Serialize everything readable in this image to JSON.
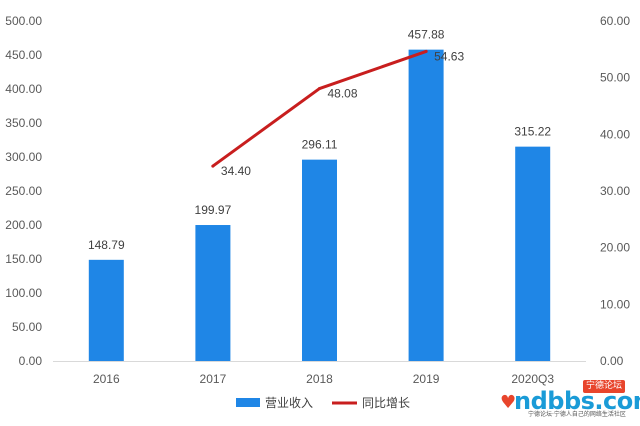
{
  "chart_data": {
    "type": "bar",
    "title": "",
    "categories": [
      "2016",
      "2017",
      "2018",
      "2019",
      "2020Q3"
    ],
    "series": [
      {
        "name": "营业收入",
        "type": "bar",
        "axis": "left",
        "values": [
          148.79,
          199.97,
          296.11,
          457.88,
          315.22
        ],
        "labels": [
          "148.79",
          "199.97",
          "296.11",
          "457.88",
          "315.22"
        ],
        "color": "#1f86e6"
      },
      {
        "name": "同比增长",
        "type": "line",
        "axis": "right",
        "values": [
          null,
          34.4,
          48.08,
          54.63,
          null
        ],
        "labels": [
          "",
          "34.40",
          "48.08",
          "54.63",
          ""
        ],
        "color": "#c81e1e"
      }
    ],
    "y_left": {
      "min": 0,
      "max": 500,
      "step": 50,
      "ticks": [
        "0.00",
        "50.00",
        "100.00",
        "150.00",
        "200.00",
        "250.00",
        "300.00",
        "350.00",
        "400.00",
        "450.00",
        "500.00"
      ]
    },
    "y_right": {
      "min": 0,
      "max": 60,
      "step": 10,
      "ticks": [
        "0.00",
        "10.00",
        "20.00",
        "30.00",
        "40.00",
        "50.00",
        "60.00"
      ]
    },
    "grid": false,
    "legend": "bottom"
  },
  "watermark": {
    "badge": "宁德论坛",
    "logo": "ndbbs.com",
    "heart": "♥",
    "sub": "宁德论坛·宁德人自己的网络生活社区"
  }
}
